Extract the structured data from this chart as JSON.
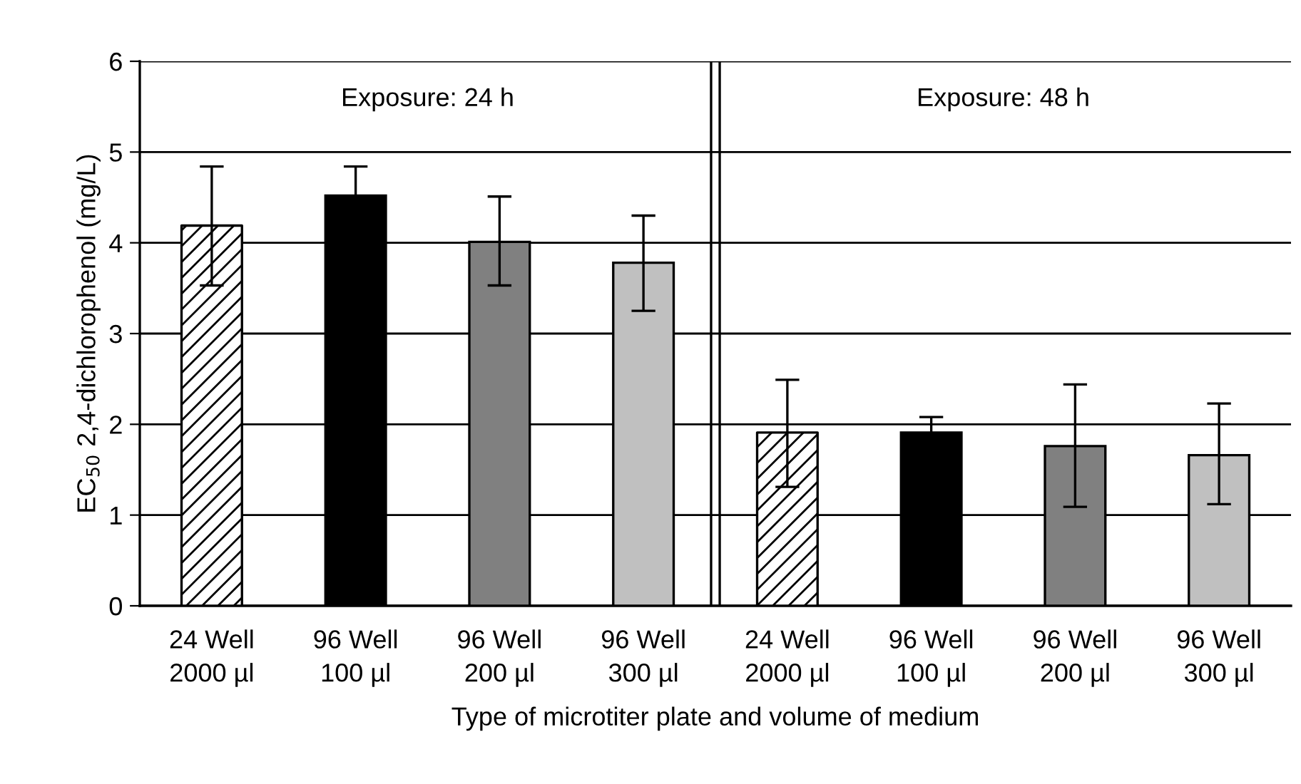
{
  "chart_data": {
    "type": "bar",
    "categories": [
      "24 Well\n2000 µl",
      "96 Well\n100 µl",
      "96 Well\n200 µl",
      "96 Well\n300 µl",
      "24 Well\n2000 µl",
      "96 Well\n100 µl",
      "96 Well\n200 µl",
      "96 Well\n300 µl"
    ],
    "values": [
      4.19,
      4.52,
      4.01,
      3.78,
      1.91,
      1.91,
      1.76,
      1.66
    ],
    "colors": [
      "#ffffff",
      "#000000",
      "#808080",
      "#c0c0c0",
      "#ffffff",
      "#000000",
      "#808080",
      "#c0c0c0"
    ],
    "errors": [
      [
        3.53,
        4.84
      ],
      0.32,
      [
        3.53,
        4.51
      ],
      [
        3.25,
        4.3
      ],
      [
        1.31,
        2.49
      ],
      0.17,
      [
        1.09,
        2.44
      ],
      [
        1.12,
        2.23
      ]
    ],
    "xlabel": "Type of microtiter plate and volume of medium",
    "ylabel": "EC$_{50}$ 2,4-dichlorophenol (mg/L)",
    "ylim": [
      0,
      6
    ],
    "yticks": [
      0,
      1,
      2,
      3,
      4,
      5,
      6
    ],
    "annotations": [
      "Exposure: 24 h",
      "Exposure: 48 h"
    ],
    "grid": "y"
  }
}
